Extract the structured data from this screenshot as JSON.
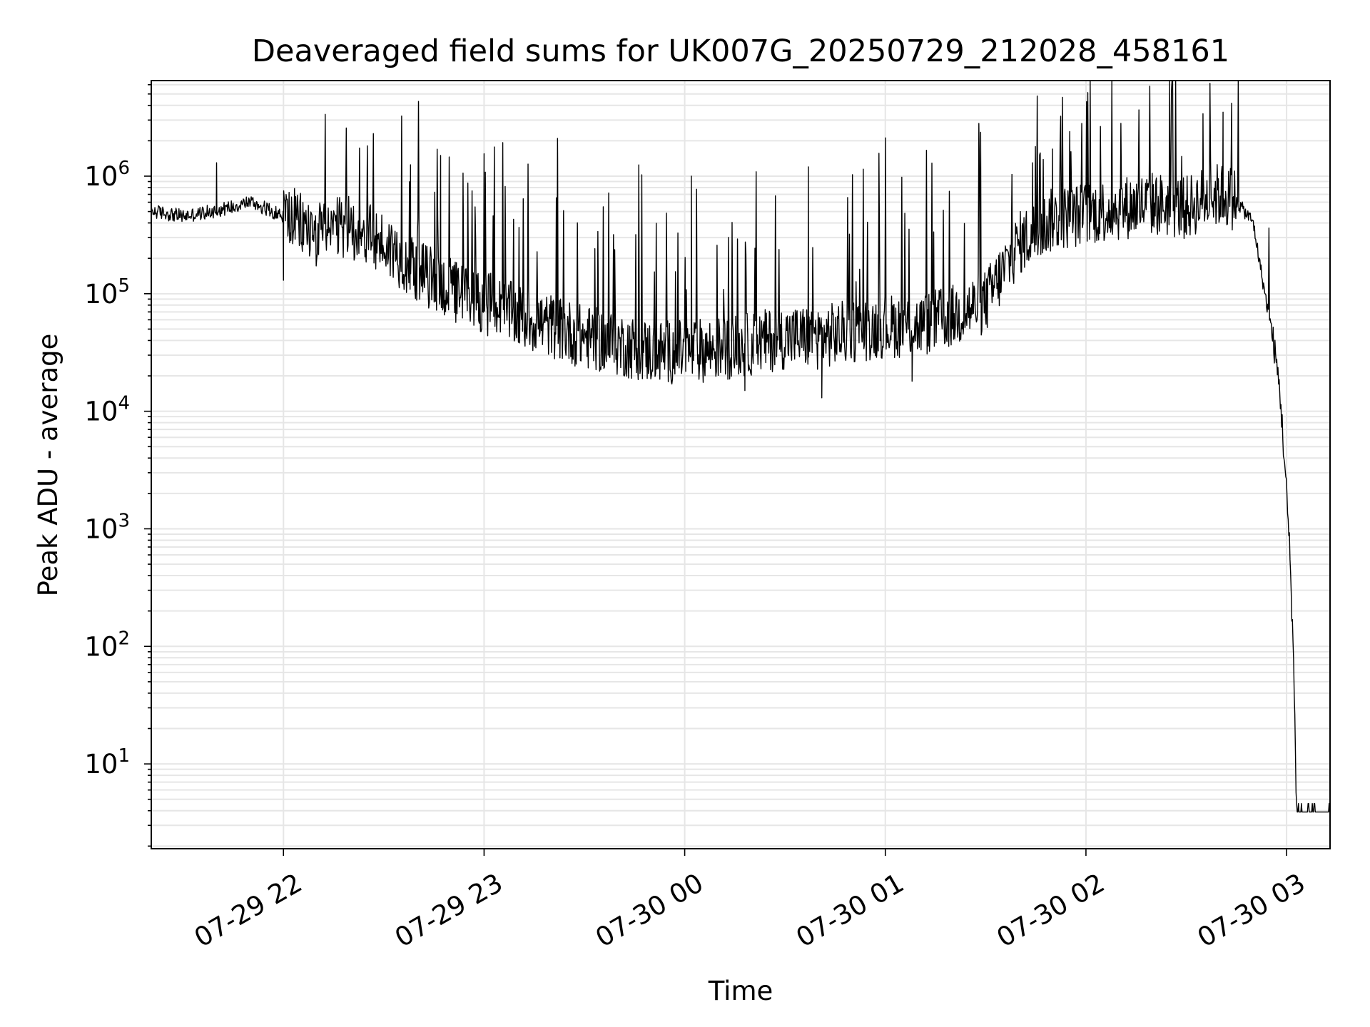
{
  "chart_data": {
    "type": "line",
    "title": "Deaveraged field sums for UK007G_20250729_212028_458161",
    "xlabel": "Time",
    "ylabel": "Peak ADU - average",
    "yscale": "log",
    "grid": true,
    "line_color": "#000000",
    "grid_color": "#e6e6e6",
    "xlim": [
      "07-29 21:20:28",
      "07-30 03:13:00"
    ],
    "ylim": [
      1.9,
      6500000
    ],
    "x_ticks": [
      "07-29 22",
      "07-29 23",
      "07-30 00",
      "07-30 01",
      "07-30 02",
      "07-30 03"
    ],
    "y_ticks": [
      {
        "base": "10",
        "exp": "1",
        "value": 10
      },
      {
        "base": "10",
        "exp": "2",
        "value": 100
      },
      {
        "base": "10",
        "exp": "3",
        "value": 1000
      },
      {
        "base": "10",
        "exp": "4",
        "value": 10000
      },
      {
        "base": "10",
        "exp": "5",
        "value": 100000
      },
      {
        "base": "10",
        "exp": "6",
        "value": 1000000
      }
    ],
    "series": [
      {
        "x": [
          "07-29 21:20",
          "07-29 21:30",
          "07-29 21:40",
          "07-29 21:50",
          "07-29 22:00",
          "07-29 22:10",
          "07-29 22:20",
          "07-29 22:30",
          "07-29 22:40",
          "07-29 22:50",
          "07-29 23:00",
          "07-29 23:10",
          "07-29 23:20",
          "07-29 23:30",
          "07-29 23:40",
          "07-29 23:50",
          "07-30 00:00",
          "07-30 00:10",
          "07-30 00:20",
          "07-30 00:30",
          "07-30 00:40",
          "07-30 00:50",
          "07-30 01:00",
          "07-30 01:10",
          "07-30 01:20",
          "07-30 01:30",
          "07-30 01:40",
          "07-30 01:50",
          "07-30 02:00",
          "07-30 02:10",
          "07-30 02:20",
          "07-30 02:30",
          "07-30 02:35",
          "07-30 02:40",
          "07-30 02:45",
          "07-30 02:50",
          "07-30 02:53",
          "07-30 02:56",
          "07-30 02:58",
          "07-30 03:00",
          "07-30 03:01",
          "07-30 03:02",
          "07-30 03:03",
          "07-30 03:05",
          "07-30 03:10",
          "07-30 03:13"
        ],
        "values": [
          500000,
          450000,
          500000,
          600000,
          450000,
          300000,
          350000,
          250000,
          150000,
          100000,
          80000,
          60000,
          50000,
          40000,
          35000,
          30000,
          30000,
          32000,
          35000,
          40000,
          40000,
          45000,
          50000,
          50000,
          60000,
          80000,
          250000,
          400000,
          450000,
          500000,
          550000,
          500000,
          600000,
          650000,
          600000,
          400000,
          120000,
          40000,
          15000,
          2000,
          600,
          100,
          4,
          4,
          4,
          4
        ],
        "peaks": [
          {
            "x": "07-29 21:40",
            "value": 1300000
          },
          {
            "x": "07-29 22:38",
            "value": 1250000
          },
          {
            "x": "07-29 22:47",
            "value": 1500000
          },
          {
            "x": "07-29 23:00",
            "value": 1550000
          },
          {
            "x": "07-29 23:22",
            "value": 1400000
          },
          {
            "x": "07-30 00:02",
            "value": 1000000
          },
          {
            "x": "07-30 00:37",
            "value": 1200000
          },
          {
            "x": "07-30 01:44",
            "value": 1300000
          },
          {
            "x": "07-30 01:50",
            "value": 1700000
          },
          {
            "x": "07-30 02:35",
            "value": 3400000
          },
          {
            "x": "07-30 02:41",
            "value": 3500000
          }
        ],
        "dips": [
          {
            "x": "07-29 22:00",
            "value": 130000
          },
          {
            "x": "07-30 00:18",
            "value": 15000
          },
          {
            "x": "07-30 00:41",
            "value": 13000
          },
          {
            "x": "07-30 01:08",
            "value": 18000
          }
        ]
      }
    ]
  }
}
